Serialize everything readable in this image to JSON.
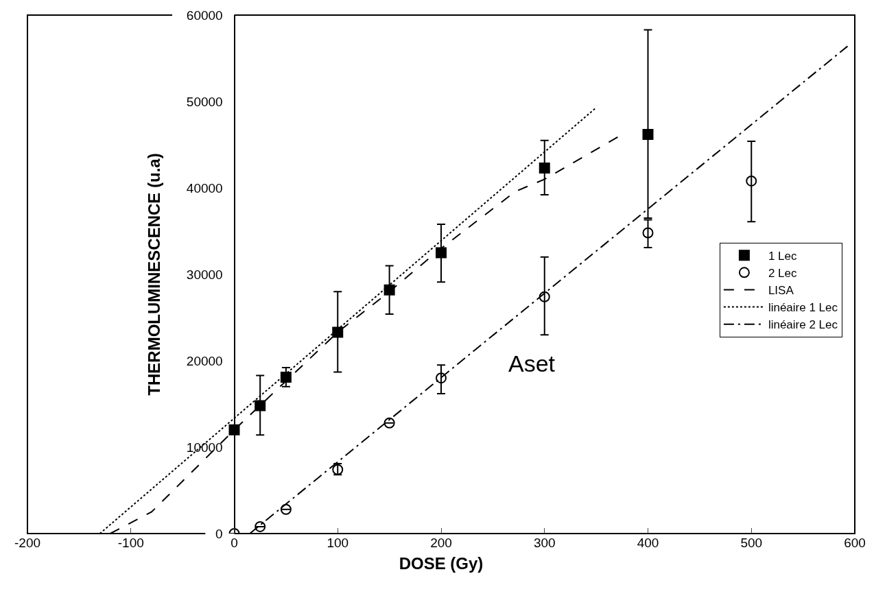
{
  "chart_data": {
    "type": "scatter",
    "xlabel": "DOSE (Gy)",
    "ylabel": "THERMOLUMINESCENCE (u.a)",
    "xlim": [
      -200,
      600
    ],
    "xticks": [
      -200,
      -100,
      0,
      100,
      200,
      300,
      400,
      500,
      600
    ],
    "ylim": [
      0,
      60000
    ],
    "yticks": [
      0,
      10000,
      20000,
      30000,
      40000,
      50000,
      60000
    ],
    "legend": "right",
    "annotations": [
      "Aset"
    ],
    "series": [
      {
        "name": "1 Lec",
        "marker": "square",
        "color": "#000000",
        "x": [
          0,
          25,
          50,
          100,
          150,
          200,
          300,
          400
        ],
        "values": [
          12000,
          14800,
          18100,
          23300,
          28200,
          32500,
          42300,
          46200
        ],
        "errors": [
          null,
          [
            11400,
            18300
          ],
          [
            17000,
            19200
          ],
          [
            18700,
            28000
          ],
          [
            25400,
            31000
          ],
          [
            29100,
            35800
          ],
          [
            39200,
            45500
          ],
          [
            36500,
            58300
          ]
        ]
      },
      {
        "name": "2 Lec",
        "marker": "circle",
        "color": "#000000",
        "x": [
          0,
          25,
          50,
          100,
          150,
          200,
          300,
          400,
          500
        ],
        "values": [
          0,
          800,
          2800,
          7400,
          12800,
          18000,
          27400,
          34800,
          40800
        ],
        "errors": [
          null,
          null,
          null,
          [
            6800,
            8100
          ],
          null,
          [
            16200,
            19500
          ],
          [
            23000,
            32000
          ],
          [
            33100,
            36300
          ],
          [
            36100,
            45400
          ]
        ]
      },
      {
        "name": "LISA",
        "type": "line",
        "line_style": "dashed",
        "color": "#000000",
        "x": [
          -120,
          -80,
          0,
          100,
          150,
          200,
          272,
          300,
          371
        ],
        "values": [
          0,
          2500,
          12000,
          23300,
          28000,
          33000,
          39600,
          41000,
          45900
        ]
      },
      {
        "name": "linéaire 1 Lec",
        "type": "line",
        "line_style": "dotted",
        "color": "#000000",
        "x": [
          -130,
          350
        ],
        "values": [
          0,
          49300
        ]
      },
      {
        "name": "linéaire 2 Lec",
        "type": "line",
        "line_style": "dashdot",
        "color": "#000000",
        "x": [
          15,
          593
        ],
        "values": [
          0,
          56400
        ]
      }
    ]
  }
}
